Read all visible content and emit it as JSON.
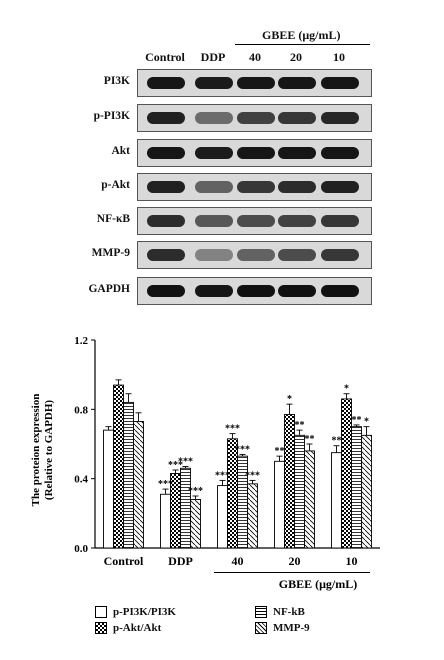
{
  "blot": {
    "lanes": [
      "Control",
      "DDP",
      "40",
      "20",
      "10"
    ],
    "group_label": "GBEE (μg/mL)",
    "rows": [
      {
        "label": "PI3K",
        "intensity": [
          0.9,
          0.88,
          0.9,
          0.9,
          0.9
        ]
      },
      {
        "label": "p-PI3K",
        "intensity": [
          0.85,
          0.5,
          0.7,
          0.75,
          0.82
        ]
      },
      {
        "label": "Akt",
        "intensity": [
          0.9,
          0.88,
          0.9,
          0.9,
          0.9
        ]
      },
      {
        "label": "p-Akt",
        "intensity": [
          0.85,
          0.55,
          0.75,
          0.8,
          0.85
        ]
      },
      {
        "label": "NF-κB",
        "intensity": [
          0.8,
          0.6,
          0.65,
          0.7,
          0.75
        ]
      },
      {
        "label": "MMP-9",
        "intensity": [
          0.8,
          0.4,
          0.55,
          0.65,
          0.75
        ]
      },
      {
        "label": "GAPDH",
        "intensity": [
          0.92,
          0.9,
          0.92,
          0.92,
          0.92
        ]
      }
    ]
  },
  "chart_data": {
    "type": "bar",
    "ylabel_line1": "The proteion expression",
    "ylabel_line2": "(Relative to GAPDH)",
    "ylim": [
      0.0,
      1.2
    ],
    "yticks": [
      "0.0",
      "0.4",
      "0.8",
      "1.2"
    ],
    "categories": [
      "Control",
      "DDP",
      "40",
      "20",
      "10"
    ],
    "group_label": "GBEE (μg/mL)",
    "series": [
      {
        "name": "p-PI3K/PI3K",
        "values": [
          0.68,
          0.31,
          0.36,
          0.5,
          0.55
        ],
        "errors": [
          0.02,
          0.03,
          0.03,
          0.03,
          0.04
        ],
        "sig": [
          "",
          "***",
          "***",
          "**",
          "**"
        ]
      },
      {
        "name": "p-Akt/Akt",
        "values": [
          0.94,
          0.43,
          0.63,
          0.77,
          0.86
        ],
        "errors": [
          0.03,
          0.02,
          0.03,
          0.06,
          0.03
        ],
        "sig": [
          "",
          "***",
          "***",
          "*",
          "*"
        ]
      },
      {
        "name": "NF-kB",
        "values": [
          0.84,
          0.46,
          0.53,
          0.65,
          0.7
        ],
        "errors": [
          0.05,
          0.01,
          0.01,
          0.03,
          0.01
        ],
        "sig": [
          "",
          "***",
          "***",
          "**",
          "**"
        ]
      },
      {
        "name": "MMP-9",
        "values": [
          0.73,
          0.28,
          0.37,
          0.56,
          0.65
        ],
        "errors": [
          0.05,
          0.02,
          0.02,
          0.04,
          0.05
        ],
        "sig": [
          "",
          "***",
          "***",
          "**",
          "*"
        ]
      }
    ],
    "legend_position": "bottom"
  }
}
